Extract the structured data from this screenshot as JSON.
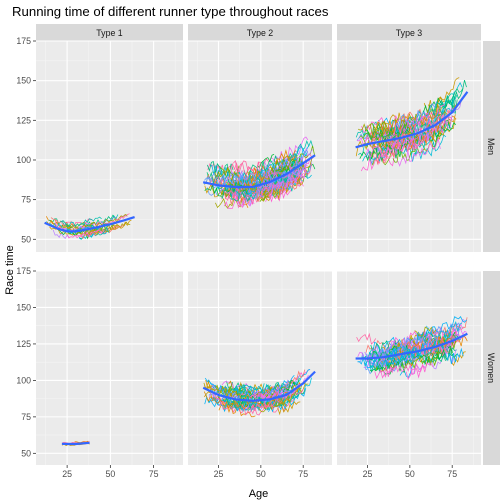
{
  "chart_data": {
    "type": "line",
    "title": "Running time of different runner type throughout races",
    "xlabel": "Age",
    "ylabel": "Race time",
    "xlim": [
      7,
      92
    ],
    "ylim": [
      42,
      175
    ],
    "x_ticks": [
      25,
      50,
      75
    ],
    "y_ticks": [
      50,
      75,
      100,
      125,
      150,
      175
    ],
    "grid": true,
    "facet_columns": [
      "Type 1",
      "Type 2",
      "Type 3"
    ],
    "facet_rows": [
      "Men",
      "Women"
    ],
    "trend_color": "#3366ff",
    "runner_palette": [
      "#f8766d",
      "#e58700",
      "#c99800",
      "#a3a500",
      "#6bb100",
      "#00ba38",
      "#00bf7d",
      "#00c0af",
      "#00bcd8",
      "#00b0f6",
      "#619cff",
      "#b983ff",
      "#e76bf3",
      "#fd61d1",
      "#ff67a4"
    ],
    "panels": [
      {
        "col": "Type 1",
        "row": "Men",
        "cloud": {
          "x_range": [
            12,
            64
          ],
          "center": [
            57,
            60
          ],
          "spread": 4,
          "n_runners": 40
        },
        "smooth": {
          "x": [
            12,
            20,
            25,
            30,
            40,
            50,
            58,
            64
          ],
          "y": [
            60.5,
            56.5,
            55,
            55,
            57,
            59.5,
            62,
            64
          ]
        }
      },
      {
        "col": "Type 2",
        "row": "Men",
        "cloud": {
          "x_range": [
            16,
            82
          ],
          "center": [
            86,
            86
          ],
          "spread": 9,
          "n_runners": 160
        },
        "smooth": {
          "x": [
            16,
            25,
            35,
            45,
            55,
            65,
            75,
            82
          ],
          "y": [
            86,
            84,
            83,
            83,
            86,
            91,
            98,
            103
          ]
        }
      },
      {
        "col": "Type 3",
        "row": "Men",
        "cloud": {
          "x_range": [
            18,
            84
          ],
          "center": [
            113,
            122
          ],
          "spread": 10,
          "n_runners": 110
        },
        "smooth": {
          "x": [
            18,
            25,
            35,
            45,
            55,
            65,
            75,
            84
          ],
          "y": [
            108,
            110,
            112,
            114,
            117,
            122,
            130,
            143
          ]
        }
      },
      {
        "col": "Type 1",
        "row": "Women",
        "cloud": {
          "x_range": [
            22,
            38
          ],
          "center": [
            56,
            57
          ],
          "spread": 1.2,
          "n_runners": 3
        },
        "smooth": {
          "x": [
            22,
            26,
            30,
            34,
            38
          ],
          "y": [
            56.5,
            56.4,
            56.4,
            56.8,
            57.2
          ]
        }
      },
      {
        "col": "Type 2",
        "row": "Women",
        "cloud": {
          "x_range": [
            16,
            80
          ],
          "center": [
            89,
            92
          ],
          "spread": 7,
          "n_runners": 110
        },
        "smooth": {
          "x": [
            16,
            25,
            35,
            45,
            55,
            65,
            75,
            82
          ],
          "y": [
            95,
            90,
            87,
            86,
            87,
            90,
            98,
            106
          ]
        }
      },
      {
        "col": "Type 3",
        "row": "Women",
        "cloud": {
          "x_range": [
            18,
            84
          ],
          "center": [
            117,
            125
          ],
          "spread": 10,
          "n_runners": 120
        },
        "smooth": {
          "x": [
            18,
            25,
            35,
            45,
            55,
            65,
            75,
            84
          ],
          "y": [
            115,
            115,
            116,
            118,
            120,
            123,
            127,
            132
          ]
        }
      }
    ]
  }
}
